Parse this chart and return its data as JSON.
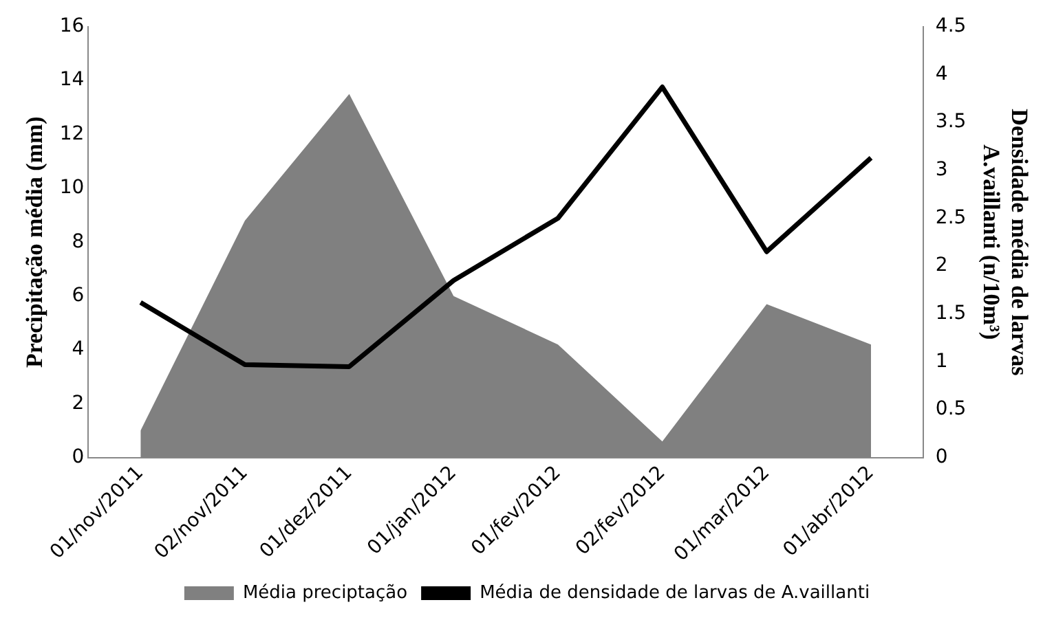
{
  "chart_data": {
    "type": "area",
    "categories": [
      "01/nov/2011",
      "02/nov/2011",
      "01/dez/2011",
      "01/jan/2012",
      "01/fev/2012",
      "02/fev/2012",
      "01/mar/2012",
      "01/abr/2012"
    ],
    "series": [
      {
        "name": "Média preciptação",
        "color": "#808080",
        "values": [
          1.0,
          8.8,
          13.5,
          6.0,
          4.2,
          0.6,
          5.7,
          4.2
        ]
      },
      {
        "name": "Média de densidade de larvas de A.vaillanti",
        "type": "line",
        "axis": "y2",
        "color": "#000000",
        "values": [
          1.62,
          0.97,
          0.95,
          1.85,
          2.5,
          3.87,
          2.15,
          3.13
        ]
      }
    ],
    "ylabel": "Precipitação média (mm)",
    "y2label": "Densidade média de larvas A.vaillanti (n/10m³)",
    "ylim": [
      0,
      16
    ],
    "yticks": [
      0,
      2,
      4,
      6,
      8,
      10,
      12,
      14,
      16
    ],
    "y2lim": [
      0,
      4.5
    ],
    "y2ticks": [
      0,
      0.5,
      1,
      1.5,
      2,
      2.5,
      3,
      3.5,
      4,
      4.5
    ],
    "grid": false,
    "legend": "bottom",
    "marker": "none",
    "line_style": "solid"
  }
}
